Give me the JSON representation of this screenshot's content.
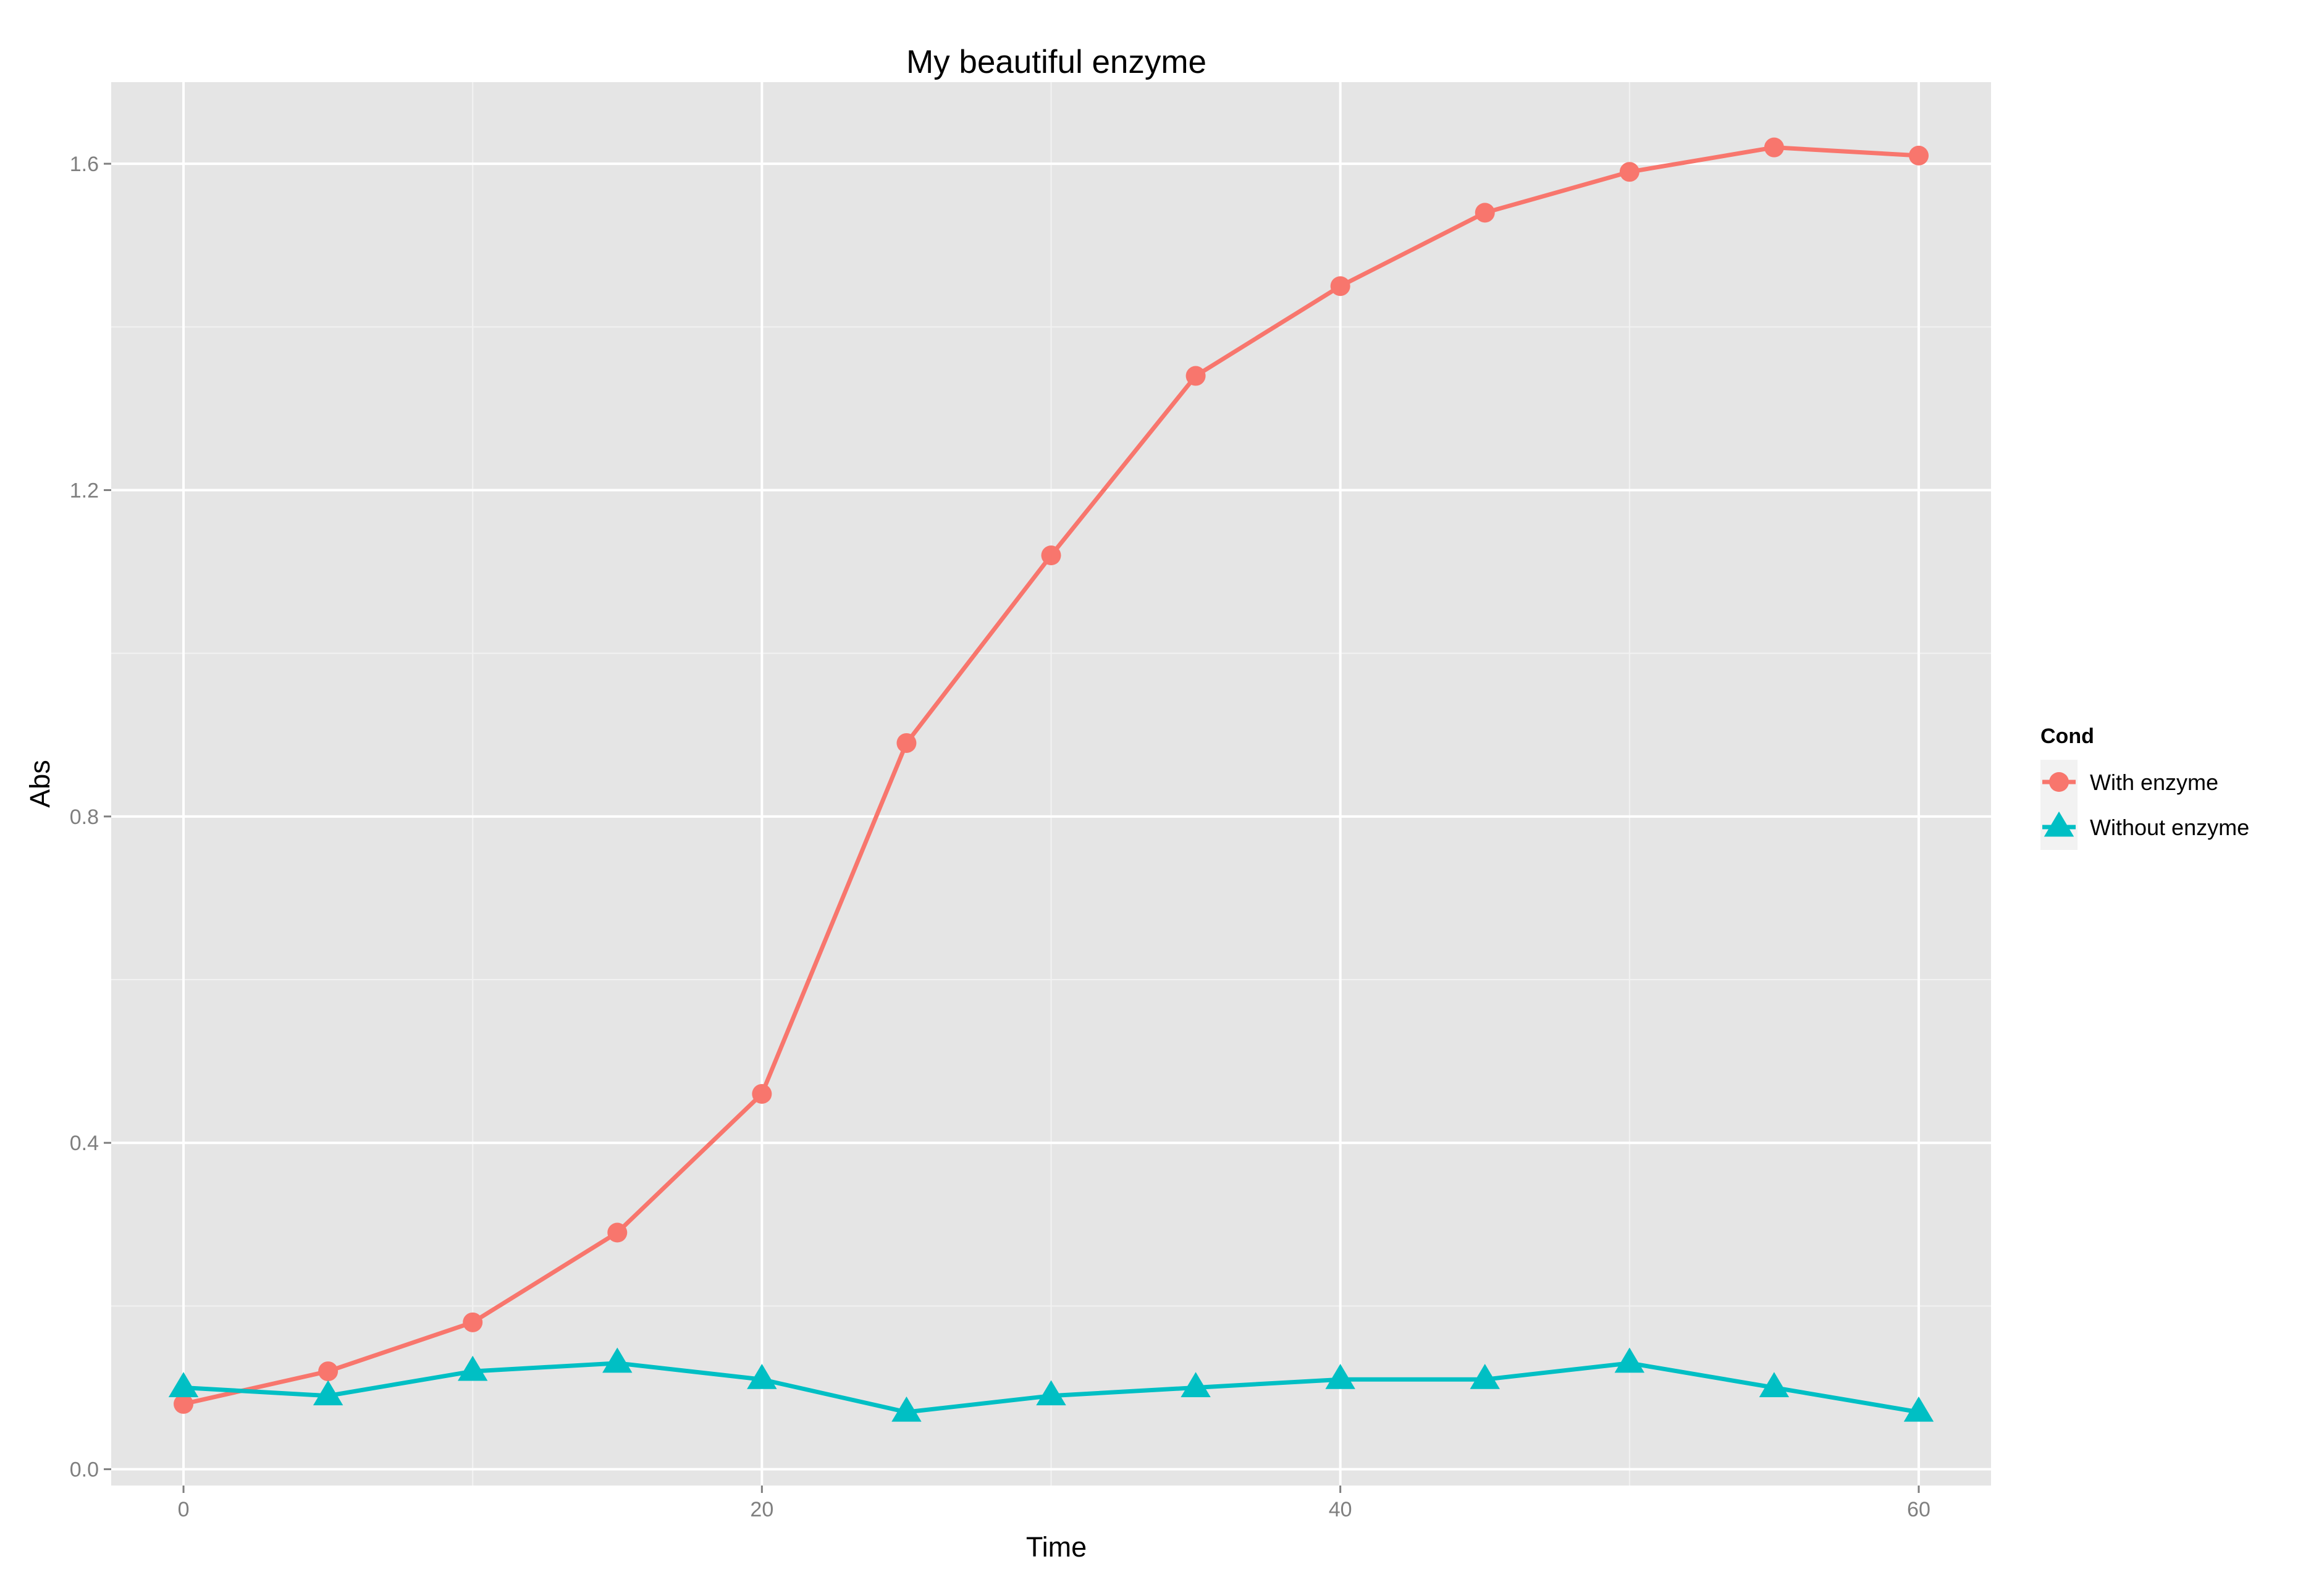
{
  "chart_data": {
    "type": "line",
    "title": "My beautiful enzyme",
    "xlabel": "Time",
    "ylabel": "Abs",
    "xlim": [
      -2.5,
      62.5
    ],
    "ylim": [
      -0.02,
      1.7
    ],
    "xticks": [
      0,
      20,
      40,
      60
    ],
    "yticks": [
      0.0,
      0.4,
      0.8,
      1.2,
      1.6
    ],
    "xtick_labels": [
      "0",
      "20",
      "40",
      "60"
    ],
    "ytick_labels": [
      "0.0",
      "0.4",
      "0.8",
      "1.2",
      "1.6"
    ],
    "grid": true,
    "legend": {
      "title": "Cond",
      "position": "right"
    },
    "x": [
      0,
      5,
      10,
      15,
      20,
      25,
      30,
      35,
      40,
      45,
      50,
      55,
      60
    ],
    "series": [
      {
        "name": "With enzyme",
        "color": "#f8766d",
        "marker": "circle",
        "values": [
          0.08,
          0.12,
          0.18,
          0.29,
          0.46,
          0.89,
          1.12,
          1.34,
          1.45,
          1.54,
          1.59,
          1.62,
          1.61
        ]
      },
      {
        "name": "Without enzyme",
        "color": "#00bfc4",
        "marker": "triangle",
        "values": [
          0.1,
          0.09,
          0.12,
          0.13,
          0.11,
          0.07,
          0.09,
          0.1,
          0.11,
          0.11,
          0.13,
          0.1,
          0.07
        ]
      }
    ],
    "colors": {
      "panel_background": "#e5e5e5",
      "grid_major": "#ffffff",
      "grid_minor": "#f2f2f2"
    }
  }
}
